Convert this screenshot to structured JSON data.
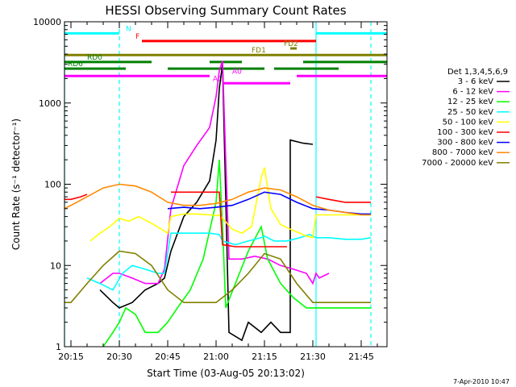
{
  "stamp": "7-Apr-2010 10:47",
  "chart_data": {
    "type": "line",
    "title": "HESSI Observing Summary Count Rates",
    "xlabel": "Start Time (03-Aug-05 20:13:02)",
    "ylabel": "Count Rate (s⁻¹ detector⁻¹)",
    "ylim": [
      1,
      10000
    ],
    "yscale": "log",
    "xlim": [
      "20:13",
      "21:53"
    ],
    "xticks": [
      "20:15",
      "20:30",
      "20:45",
      "21:00",
      "21:15",
      "21:30",
      "21:45"
    ],
    "yticks": [
      {
        "value": 1,
        "label": "1"
      },
      {
        "value": 10,
        "label": "10"
      },
      {
        "value": 100,
        "label": "100"
      },
      {
        "value": 1000,
        "label": "1000"
      },
      {
        "value": 10000,
        "label": "10000"
      }
    ],
    "legend_title": "Det 1,3,4,5,6,9",
    "legend_position": "right",
    "series": [
      {
        "name": "3 - 6 keV",
        "color": "#000000",
        "x": [
          "20:13",
          "20:20",
          "20:24",
          "20:28",
          "20:30",
          "20:34",
          "20:38",
          "20:42",
          "20:44",
          "20:46",
          "20:50",
          "20:54",
          "20:58",
          "21:00",
          "21:01",
          "21:02",
          "21:04",
          "21:08",
          "21:10",
          "21:14",
          "21:17",
          "21:20",
          "21:23",
          "21:23",
          "21:27",
          "21:30",
          "21:31",
          "21:35"
        ],
        "y": [
          null,
          null,
          5,
          3.5,
          3,
          3.5,
          5,
          6,
          7,
          15,
          40,
          60,
          110,
          350,
          1500,
          3000,
          1.5,
          1.2,
          2,
          1.5,
          2,
          1.5,
          1.5,
          350,
          320,
          310,
          null,
          null
        ]
      },
      {
        "name": "6 - 12 keV",
        "color": "#ff00ff",
        "x": [
          "20:13",
          "20:20",
          "20:24",
          "20:28",
          "20:30",
          "20:34",
          "20:38",
          "20:42",
          "20:44",
          "20:46",
          "20:50",
          "20:54",
          "20:58",
          "21:00",
          "21:01",
          "21:02",
          "21:04",
          "21:08",
          "21:12",
          "21:16",
          "21:20",
          "21:24",
          "21:28",
          "21:30",
          "21:31",
          "21:32",
          "21:35"
        ],
        "y": [
          null,
          null,
          6,
          8,
          8,
          7,
          6,
          6,
          9,
          50,
          170,
          300,
          500,
          1200,
          2500,
          3300,
          12,
          12,
          13,
          12,
          10,
          9,
          8,
          6,
          8,
          7,
          8
        ]
      },
      {
        "name": "12 - 25 keV",
        "color": "#00ff00",
        "x": [
          "20:13",
          "20:20",
          "20:25",
          "20:28",
          "20:30",
          "20:32",
          "20:35",
          "20:38",
          "20:42",
          "20:45",
          "20:48",
          "20:52",
          "20:56",
          "21:00",
          "21:01",
          "21:02",
          "21:03",
          "21:06",
          "21:10",
          "21:14",
          "21:16",
          "21:20",
          "21:24",
          "21:28",
          "21:31",
          "21:35",
          "21:40",
          "21:45",
          "21:48"
        ],
        "y": [
          null,
          null,
          1,
          1.5,
          2,
          3,
          2.5,
          1.5,
          1.5,
          2,
          3,
          5,
          12,
          60,
          200,
          30,
          3,
          6,
          15,
          30,
          12,
          6,
          4,
          3,
          3,
          3,
          3,
          3,
          3
        ]
      },
      {
        "name": "25 - 50 keV",
        "color": "#00ffff",
        "x": [
          "20:13",
          "20:15",
          "20:18",
          "20:20",
          "20:24",
          "20:28",
          "20:31",
          "20:34",
          "20:38",
          "20:42",
          "20:44",
          "20:46",
          "20:50",
          "20:54",
          "20:58",
          "21:01",
          "21:02",
          "21:06",
          "21:10",
          "21:14",
          "21:15",
          "21:18",
          "21:22",
          "21:26",
          "21:29",
          "21:31",
          "21:35",
          "21:40",
          "21:45",
          "21:48"
        ],
        "y": [
          null,
          null,
          null,
          7,
          6,
          5,
          8,
          10,
          9,
          8,
          8,
          25,
          25,
          25,
          25,
          24,
          20,
          18,
          20,
          22,
          23,
          20,
          20,
          22,
          24,
          22,
          22,
          21,
          21,
          22
        ]
      },
      {
        "name": "50 - 100 keV",
        "color": "#ffff00",
        "x": [
          "20:13",
          "20:15",
          "20:18",
          "20:21",
          "20:24",
          "20:27",
          "20:30",
          "20:33",
          "20:36",
          "20:40",
          "20:43",
          "20:45",
          "20:46",
          "20:50",
          "20:54",
          "20:58",
          "21:00",
          "21:01",
          "21:02",
          "21:05",
          "21:08",
          "21:11",
          "21:14",
          "21:15",
          "21:17",
          "21:20",
          "21:23",
          "21:26",
          "21:28",
          "21:30",
          "21:31",
          "21:35",
          "21:40",
          "21:45",
          "21:48"
        ],
        "y": [
          null,
          null,
          null,
          20,
          25,
          30,
          38,
          35,
          40,
          33,
          28,
          25,
          40,
          43,
          43,
          42,
          41,
          42,
          38,
          28,
          25,
          30,
          120,
          160,
          50,
          32,
          28,
          25,
          23,
          22,
          42,
          42,
          42,
          42,
          42
        ]
      },
      {
        "name": "100 - 300 keV",
        "color": "#ff0000",
        "x": [
          "20:13",
          "20:15",
          "20:18",
          "20:20",
          "20:24",
          "20:28",
          "20:30",
          "20:34",
          "20:38",
          "20:42",
          "20:45",
          "20:46",
          "20:50",
          "20:54",
          "20:58",
          "21:01",
          "21:02",
          "21:06",
          "21:10",
          "21:14",
          "21:15",
          "21:18",
          "21:22",
          "21:26",
          "21:29",
          "21:31",
          "21:35",
          "21:40",
          "21:45",
          "21:48"
        ],
        "y": [
          65,
          65,
          70,
          75,
          null,
          null,
          null,
          null,
          null,
          null,
          null,
          80,
          80,
          80,
          80,
          80,
          18,
          17,
          17,
          17,
          17,
          17,
          17,
          null,
          null,
          70,
          65,
          60,
          60,
          60
        ]
      },
      {
        "name": "300 - 800 keV",
        "color": "#0000ff",
        "x": [
          "20:13",
          "20:15",
          "20:20",
          "20:25",
          "20:30",
          "20:35",
          "20:40",
          "20:45",
          "20:50",
          "20:55",
          "21:00",
          "21:05",
          "21:10",
          "21:15",
          "21:20",
          "21:25",
          "21:30",
          "21:35",
          "21:40",
          "21:45",
          "21:48"
        ],
        "y": [
          null,
          null,
          null,
          null,
          null,
          null,
          null,
          50,
          52,
          50,
          52,
          55,
          65,
          80,
          75,
          60,
          50,
          48,
          45,
          43,
          43
        ]
      },
      {
        "name": "800 - 7000 keV",
        "color": "#ff8800",
        "x": [
          "20:13",
          "20:15",
          "20:20",
          "20:25",
          "20:30",
          "20:35",
          "20:40",
          "20:45",
          "20:50",
          "20:55",
          "21:00",
          "21:05",
          "21:10",
          "21:15",
          "21:20",
          "21:25",
          "21:30",
          "21:35",
          "21:40",
          "21:45",
          "21:48"
        ],
        "y": [
          50,
          55,
          70,
          90,
          100,
          95,
          80,
          60,
          55,
          55,
          58,
          65,
          80,
          90,
          85,
          70,
          55,
          48,
          45,
          42,
          42
        ]
      },
      {
        "name": "7000 - 20000 keV",
        "color": "#808000",
        "x": [
          "20:13",
          "20:15",
          "20:20",
          "20:25",
          "20:30",
          "20:35",
          "20:40",
          "20:45",
          "20:50",
          "20:55",
          "21:00",
          "21:05",
          "21:10",
          "21:15",
          "21:20",
          "21:25",
          "21:30",
          "21:35",
          "21:40",
          "21:45",
          "21:48"
        ],
        "y": [
          3.5,
          3.5,
          6,
          10,
          15,
          14,
          10,
          5,
          3.5,
          3.5,
          3.5,
          5,
          8,
          14,
          12,
          6,
          3.5,
          3.5,
          3.5,
          3.5,
          3.5
        ]
      }
    ],
    "annotation_bars": [
      {
        "label": "N",
        "color": "#00ffff",
        "y": 7200,
        "segments": [
          [
            "20:13",
            "20:30"
          ],
          [
            "21:31",
            "21:53"
          ]
        ],
        "label_at": "20:32"
      },
      {
        "label": "F",
        "color": "#ff0000",
        "y": 5800,
        "segments": [
          [
            "20:37",
            "21:31"
          ]
        ],
        "label_at": "20:35"
      },
      {
        "label": "FD1",
        "color": "#808000",
        "y": 3900,
        "segments": [
          [
            "20:13",
            "21:53"
          ]
        ],
        "label_at": "21:11"
      },
      {
        "label": "FD2",
        "color": "#808000",
        "y": 4700,
        "segments": [
          [
            "21:23",
            "21:25"
          ]
        ],
        "label_at": "21:21"
      },
      {
        "label": "RD0",
        "color": "#008000",
        "y": 3200,
        "segments": [
          [
            "20:13",
            "20:40"
          ],
          [
            "20:58",
            "21:08"
          ],
          [
            "21:27",
            "21:53"
          ]
        ],
        "label_at": "20:20"
      },
      {
        "label": "RD6",
        "color": "#008000",
        "y": 2650,
        "segments": [
          [
            "20:13",
            "20:18"
          ],
          [
            "20:18",
            "20:32"
          ],
          [
            "20:45",
            "21:15"
          ],
          [
            "21:18",
            "21:38"
          ]
        ],
        "label_at": "20:14"
      },
      {
        "label": "A0",
        "color": "#ff00ff",
        "y": 2150,
        "segments": [
          [
            "20:13",
            "20:58"
          ],
          [
            "21:25",
            "21:53"
          ]
        ],
        "label_at": "21:05"
      },
      {
        "label": "A1",
        "color": "#ff00ff",
        "y": 1750,
        "segments": [
          [
            "21:02",
            "21:23"
          ]
        ],
        "label_at": "20:59"
      }
    ],
    "vertical_markers": [
      {
        "x": "20:13",
        "color": "#00ffff",
        "style": "solid"
      },
      {
        "x": "20:30",
        "color": "#00ffff",
        "style": "dashed"
      },
      {
        "x": "21:31",
        "color": "#00ffff",
        "style": "solid"
      },
      {
        "x": "21:48",
        "color": "#00ffff",
        "style": "dashed"
      }
    ]
  }
}
